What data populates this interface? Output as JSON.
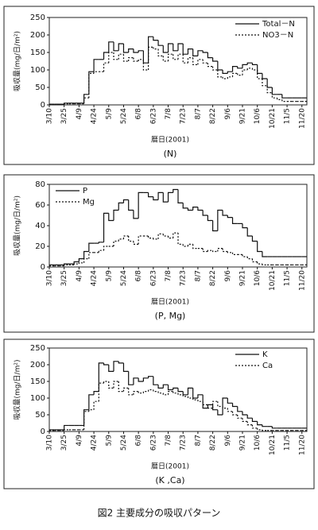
{
  "caption": "図2 主要成分の吸収パターン",
  "chart_data": [
    {
      "type": "step",
      "subtitle": "(N)",
      "x_label": "暦日(2001)",
      "y_label": "吸収量(mg/日/m²)",
      "legend": "upper right",
      "categories": [
        "3/10",
        null,
        null,
        "3/25",
        null,
        null,
        "4/9",
        null,
        null,
        "4/24",
        null,
        null,
        "5/9",
        null,
        null,
        "5/24",
        null,
        null,
        "6/8",
        null,
        null,
        "6/23",
        null,
        null,
        "7/8",
        null,
        null,
        "7/23",
        null,
        null,
        "8/7",
        null,
        null,
        "8/22",
        null,
        null,
        "9/6",
        null,
        null,
        "9/21",
        null,
        null,
        "10/6",
        null,
        null,
        "10/21",
        null,
        null,
        "11/5",
        null,
        null,
        "11/20"
      ],
      "ylim": [
        0,
        250
      ],
      "yticks": [
        0,
        50,
        100,
        150,
        200,
        250
      ],
      "series": [
        {
          "name": "Total－N",
          "color": "#111111",
          "style": "solid",
          "values": [
            2,
            2,
            2,
            5,
            5,
            5,
            5,
            30,
            95,
            130,
            130,
            150,
            180,
            155,
            175,
            150,
            160,
            150,
            155,
            120,
            195,
            185,
            170,
            150,
            175,
            155,
            175,
            145,
            160,
            140,
            155,
            150,
            135,
            125,
            100,
            90,
            95,
            110,
            105,
            115,
            120,
            115,
            90,
            75,
            50,
            30,
            30,
            20,
            20,
            20,
            20,
            20
          ]
        },
        {
          "name": "NO3－N",
          "color": "#111111",
          "style": "dotted",
          "values": [
            1,
            1,
            1,
            3,
            3,
            3,
            3,
            20,
            90,
            95,
            95,
            120,
            150,
            130,
            145,
            125,
            135,
            125,
            130,
            100,
            165,
            160,
            140,
            125,
            145,
            130,
            145,
            120,
            135,
            115,
            130,
            120,
            110,
            100,
            80,
            75,
            80,
            90,
            85,
            100,
            105,
            100,
            75,
            55,
            35,
            20,
            15,
            10,
            10,
            10,
            10,
            10
          ]
        }
      ]
    },
    {
      "type": "step",
      "subtitle": "(P, Mg)",
      "x_label": "暦日(2001)",
      "y_label": "吸収量(mg/日/m²)",
      "legend": "upper left",
      "categories": [
        "3/10",
        null,
        null,
        "3/25",
        null,
        null,
        "4/9",
        null,
        null,
        "4/24",
        null,
        null,
        "5/9",
        null,
        null,
        "5/24",
        null,
        null,
        "6/8",
        null,
        null,
        "6/23",
        null,
        null,
        "7/8",
        null,
        null,
        "7/23",
        null,
        null,
        "8/7",
        null,
        null,
        "8/22",
        null,
        null,
        "9/6",
        null,
        null,
        "9/21",
        null,
        null,
        "10/6",
        null,
        null,
        "10/21",
        null,
        null,
        "11/5",
        null,
        null,
        "11/20"
      ],
      "ylim": [
        0,
        80
      ],
      "yticks": [
        0,
        20,
        40,
        60,
        80
      ],
      "series": [
        {
          "name": "P",
          "color": "#111111",
          "style": "solid",
          "values": [
            2,
            2,
            2,
            3,
            3,
            5,
            8,
            15,
            23,
            23,
            24,
            52,
            45,
            55,
            62,
            65,
            55,
            47,
            72,
            72,
            68,
            65,
            72,
            63,
            72,
            75,
            62,
            57,
            55,
            58,
            55,
            50,
            45,
            35,
            55,
            50,
            48,
            42,
            42,
            38,
            30,
            25,
            15,
            10,
            10,
            10,
            10,
            10,
            10,
            10,
            10,
            10
          ]
        },
        {
          "name": "Mg",
          "color": "#111111",
          "style": "dotted",
          "values": [
            1,
            1,
            1,
            2,
            2,
            3,
            4,
            8,
            14,
            14,
            16,
            20,
            20,
            25,
            27,
            30,
            25,
            22,
            30,
            30,
            28,
            27,
            32,
            30,
            28,
            33,
            22,
            20,
            22,
            18,
            18,
            15,
            16,
            15,
            18,
            15,
            14,
            12,
            12,
            10,
            8,
            5,
            3,
            2,
            2,
            2,
            2,
            2,
            2,
            2,
            2,
            2
          ]
        }
      ]
    },
    {
      "type": "step",
      "subtitle": "(K ,Ca)",
      "x_label": "暦日(2001)",
      "y_label": "吸収量(mg/日/m²)",
      "legend": "upper right",
      "categories": [
        "3/10",
        null,
        null,
        "3/25",
        null,
        null,
        "4/9",
        null,
        null,
        "4/24",
        null,
        null,
        "5/9",
        null,
        null,
        "5/24",
        null,
        null,
        "6/8",
        null,
        null,
        "6/23",
        null,
        null,
        "7/8",
        null,
        null,
        "7/23",
        null,
        null,
        "8/7",
        null,
        null,
        "8/22",
        null,
        null,
        "9/6",
        null,
        null,
        "9/21",
        null,
        null,
        "10/6",
        null,
        null,
        "10/21",
        null,
        null,
        "11/5",
        null,
        null,
        "11/20"
      ],
      "ylim": [
        0,
        250
      ],
      "yticks": [
        0,
        50,
        100,
        150,
        200,
        250
      ],
      "series": [
        {
          "name": "K",
          "color": "#111111",
          "style": "solid",
          "values": [
            5,
            5,
            5,
            18,
            18,
            18,
            18,
            65,
            110,
            120,
            205,
            200,
            180,
            210,
            205,
            180,
            140,
            160,
            150,
            160,
            165,
            140,
            130,
            140,
            125,
            130,
            120,
            110,
            130,
            100,
            110,
            70,
            80,
            65,
            50,
            100,
            85,
            75,
            60,
            50,
            40,
            30,
            20,
            15,
            15,
            10,
            10,
            10,
            10,
            10,
            10,
            10
          ]
        },
        {
          "name": "Ca",
          "color": "#111111",
          "style": "dotted",
          "values": [
            3,
            3,
            3,
            5,
            5,
            5,
            5,
            60,
            65,
            90,
            145,
            150,
            130,
            150,
            120,
            130,
            110,
            120,
            115,
            120,
            125,
            120,
            115,
            110,
            120,
            115,
            110,
            105,
            100,
            95,
            90,
            80,
            70,
            90,
            75,
            70,
            60,
            50,
            40,
            30,
            20,
            10,
            5,
            3,
            3,
            3,
            3,
            3,
            3,
            3,
            3,
            3
          ]
        }
      ]
    }
  ]
}
